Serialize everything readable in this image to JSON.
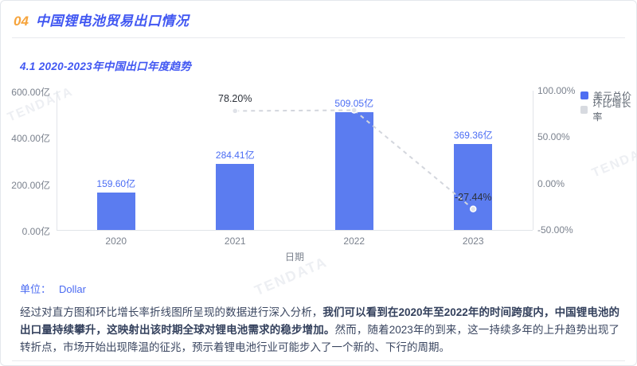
{
  "header": {
    "number": "04",
    "title": "中国锂电池贸易出口情况"
  },
  "section": {
    "title": "4.1 2020-2023年中国出口年度趋势"
  },
  "watermark": "TENDATA",
  "chart_data": {
    "type": "bar",
    "title": "",
    "categories": [
      "2020",
      "2021",
      "2022",
      "2023"
    ],
    "series": [
      {
        "name": "美元总价",
        "type": "bar",
        "values": [
          159.6,
          284.41,
          509.05,
          369.36
        ],
        "labels": [
          "159.60亿",
          "284.41亿",
          "509.05亿",
          "369.36亿"
        ],
        "color": "#5b7cf0"
      },
      {
        "name": "环比增长率",
        "type": "line",
        "values": [
          null,
          78.2,
          78.98,
          -27.44
        ],
        "labels": [
          null,
          "78.20%",
          null,
          "-27.44%"
        ],
        "color": "#d3d6dd",
        "marker_fill": "#dfe2e8",
        "dashed": true
      }
    ],
    "xlabel": "日期",
    "ylabel": "",
    "left_axis": {
      "ticks": [
        "600.00亿",
        "400.00亿",
        "200.00亿",
        "0.00亿"
      ],
      "min": 0,
      "max": 600
    },
    "right_axis": {
      "ticks": [
        "100.00%",
        "50.00%",
        "0.00%",
        "-50.00%"
      ],
      "min": -50,
      "max": 100
    },
    "legend": [
      {
        "label": "美元总价",
        "color": "#4e6ef2"
      },
      {
        "label": "环比增长率",
        "color": "#d7dae0"
      }
    ],
    "legend_position": "top-right",
    "grid": false
  },
  "unit_label": {
    "prefix": "单位：",
    "value": "Dollar"
  },
  "analysis": {
    "part1": "经过对直方图和环比增长率折线图所呈现的数据进行深入分析，",
    "part2_bold": "我们可以看到在2020年至2022年的时间跨度内，中国锂电池的出口量持续攀升，这映射出该时期全球对锂电池需求的稳步增加。",
    "part3": "然而，随着2023年的到来，这一持续多年的上升趋势出现了转折点，市场开始出现降温的征兆，预示着锂电池行业可能步入了一个新的、下行的周期。"
  },
  "colors": {
    "accent_blue": "#4157f2",
    "accent_orange": "#f6a43c",
    "bar_blue": "#5b7cf0",
    "line_gray": "#d3d6dd",
    "axis_text": "#7b828e",
    "body_text": "#3a4660"
  }
}
